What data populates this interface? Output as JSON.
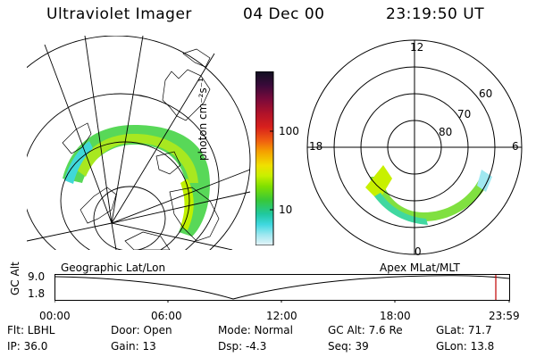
{
  "header": {
    "title": "Ultraviolet Imager",
    "date": "04 Dec 00",
    "time": "23:19:50 UT"
  },
  "colorbar": {
    "unit_label": "photon cm⁻²s⁻¹",
    "ticks": [
      "100",
      "10"
    ],
    "colors": [
      "#101020",
      "#3a0a3a",
      "#7a0a3a",
      "#b0122a",
      "#d8201c",
      "#f06010",
      "#f5a000",
      "#f0e000",
      "#c8f000",
      "#80e000",
      "#38c838",
      "#20c8a0",
      "#40d8e0",
      "#a0e8f0",
      "#e8f4f8"
    ]
  },
  "panels": {
    "left_label": "Geographic Lat/Lon",
    "right_label": "Apex MLat/MLT"
  },
  "polar": {
    "mlt": [
      "12",
      "18",
      "6",
      "0"
    ],
    "mlat": [
      "60",
      "70",
      "80"
    ]
  },
  "altitude_plot": {
    "axis_title": "GC Alt",
    "y_ticks": [
      "9.0",
      "1.8"
    ],
    "x_ticks": [
      "00:00",
      "06:00",
      "12:00",
      "18:00",
      "23:59"
    ]
  },
  "status": {
    "flt": "Flt: LBHL",
    "ip": "IP: 36.0",
    "door": "Door: Open",
    "gain": "Gain: 13",
    "mode": "Mode: Normal",
    "dsp": "Dsp:  -4.3",
    "gcalt": "GC Alt: 7.6 Re",
    "seq": "Seq: 39",
    "glat": "GLat:  71.7",
    "glon": "GLon:  13.8"
  }
}
